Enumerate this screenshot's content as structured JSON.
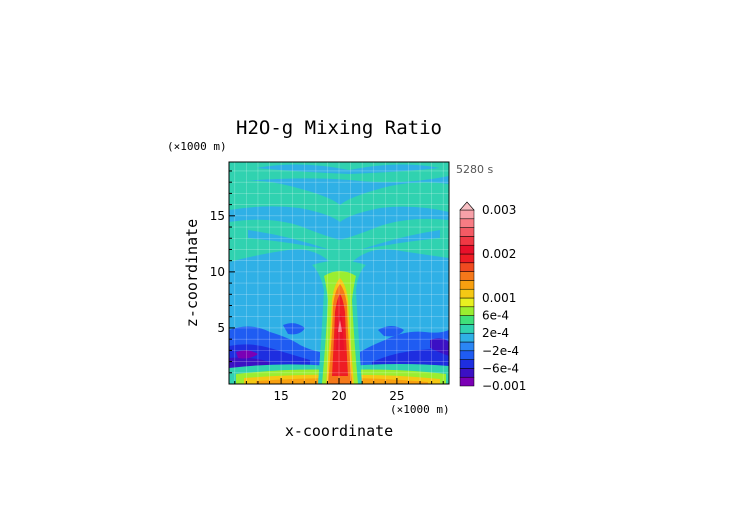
{
  "chart_data": {
    "type": "heatmap",
    "title": "H2O-g Mixing Ratio",
    "xlabel": "x-coordinate",
    "ylabel": "z-coordinate",
    "x_unit": "(×1000 m)",
    "y_unit": "(×1000 m)",
    "time_label": "5280 s",
    "xlim": [
      10.5,
      29.5
    ],
    "ylim": [
      0,
      19.8
    ],
    "x_ticks": [
      15,
      20,
      25
    ],
    "y_ticks": [
      5,
      10,
      15
    ],
    "grid": true,
    "colorbar": {
      "placement": "right",
      "levels": [
        -0.001,
        -0.0008,
        -0.0006,
        -0.0004,
        -0.0002,
        0,
        0.0002,
        0.0004,
        0.0006,
        0.0008,
        0.001,
        0.0012,
        0.0014,
        0.0016,
        0.0018,
        0.002,
        0.0022,
        0.0024,
        0.0026,
        0.0028,
        0.003
      ],
      "colors": [
        "#7b00b5",
        "#3b10c4",
        "#1e2ee0",
        "#1f5cf2",
        "#2b86f4",
        "#2fb0e6",
        "#30d2b0",
        "#3fe07a",
        "#9aee30",
        "#e8f020",
        "#f5c814",
        "#f8a010",
        "#f5781a",
        "#f04a20",
        "#ee1c24",
        "#e8102a",
        "#f03844",
        "#f45a64",
        "#f87c84",
        "#f8a0a8"
      ],
      "tick_labels": [
        {
          "value": 0.003,
          "label": "0.003"
        },
        {
          "value": 0.002,
          "label": "0.002"
        },
        {
          "value": 0.001,
          "label": "0.001"
        },
        {
          "value": 0.0006,
          "label": "6e-4"
        },
        {
          "value": 0.0002,
          "label": "2e-4"
        },
        {
          "value": -0.0002,
          "label": "−2e-4"
        },
        {
          "value": -0.0006,
          "label": "−6e-4"
        },
        {
          "value": -0.001,
          "label": "−0.001"
        }
      ]
    }
  }
}
